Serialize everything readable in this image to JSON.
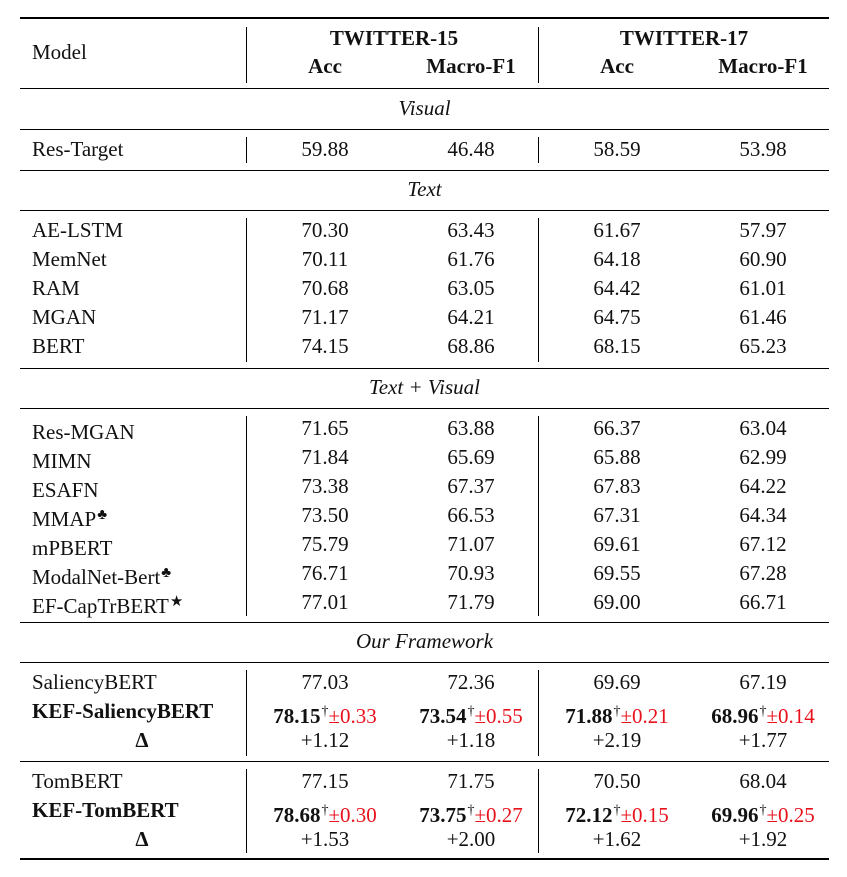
{
  "header": {
    "model_label": "Model",
    "group1": "TWITTER-15",
    "group2": "TWITTER-17",
    "acc": "Acc",
    "f1": "Macro-F1"
  },
  "sections": {
    "visual": "Visual",
    "text": "Text",
    "text_visual": "Text + Visual",
    "ours": "Our Framework"
  },
  "visual_rows": [
    {
      "name": "Res-Target",
      "v": [
        "59.88",
        "46.48",
        "58.59",
        "53.98"
      ]
    }
  ],
  "text_rows": [
    {
      "name": "AE-LSTM",
      "v": [
        "70.30",
        "63.43",
        "61.67",
        "57.97"
      ]
    },
    {
      "name": "MemNet",
      "v": [
        "70.11",
        "61.76",
        "64.18",
        "60.90"
      ]
    },
    {
      "name": "RAM",
      "v": [
        "70.68",
        "63.05",
        "64.42",
        "61.01"
      ]
    },
    {
      "name": "MGAN",
      "v": [
        "71.17",
        "64.21",
        "64.75",
        "61.46"
      ]
    },
    {
      "name": "BERT",
      "v": [
        "74.15",
        "68.86",
        "68.15",
        "65.23"
      ]
    }
  ],
  "tv_rows": [
    {
      "name": "Res-MGAN",
      "mark": "",
      "v": [
        "71.65",
        "63.88",
        "66.37",
        "63.04"
      ]
    },
    {
      "name": "MIMN",
      "mark": "",
      "v": [
        "71.84",
        "65.69",
        "65.88",
        "62.99"
      ]
    },
    {
      "name": "ESAFN",
      "mark": "",
      "v": [
        "73.38",
        "67.37",
        "67.83",
        "64.22"
      ]
    },
    {
      "name": "MMAP",
      "mark": "♣",
      "v": [
        "73.50",
        "66.53",
        "67.31",
        "64.34"
      ]
    },
    {
      "name": "mPBERT",
      "mark": "",
      "v": [
        "75.79",
        "71.07",
        "69.61",
        "67.12"
      ]
    },
    {
      "name": "ModalNet-Bert",
      "mark": "♣",
      "v": [
        "76.71",
        "70.93",
        "69.55",
        "67.28"
      ]
    },
    {
      "name": "EF-CapTrBERT",
      "mark": "★",
      "v": [
        "77.01",
        "71.79",
        "69.00",
        "66.71"
      ]
    }
  ],
  "saliency": {
    "base": {
      "name": "SaliencyBERT",
      "v": [
        "77.03",
        "72.36",
        "69.69",
        "67.19"
      ]
    },
    "kef": {
      "name": "KEF-SaliencyBERT",
      "v": [
        "78.15",
        "73.54",
        "71.88",
        "68.96"
      ],
      "dagger": "†",
      "std": [
        "±0.33",
        "±0.55",
        "±0.21",
        "±0.14"
      ]
    },
    "delta": {
      "name": "Δ",
      "v": [
        "+1.12",
        "+1.18",
        "+2.19",
        "+1.77"
      ]
    }
  },
  "tom": {
    "base": {
      "name": "TomBERT",
      "v": [
        "77.15",
        "71.75",
        "70.50",
        "68.04"
      ]
    },
    "kef": {
      "name": "KEF-TomBERT",
      "v": [
        "78.68",
        "73.75",
        "72.12",
        "69.96"
      ],
      "dagger": "†",
      "std": [
        "±0.30",
        "±0.27",
        "±0.15",
        "±0.25"
      ]
    },
    "delta": {
      "name": "Δ",
      "v": [
        "+1.53",
        "+2.00",
        "+1.62",
        "+1.92"
      ]
    }
  },
  "colors": {
    "std_color": "#e8121d"
  }
}
